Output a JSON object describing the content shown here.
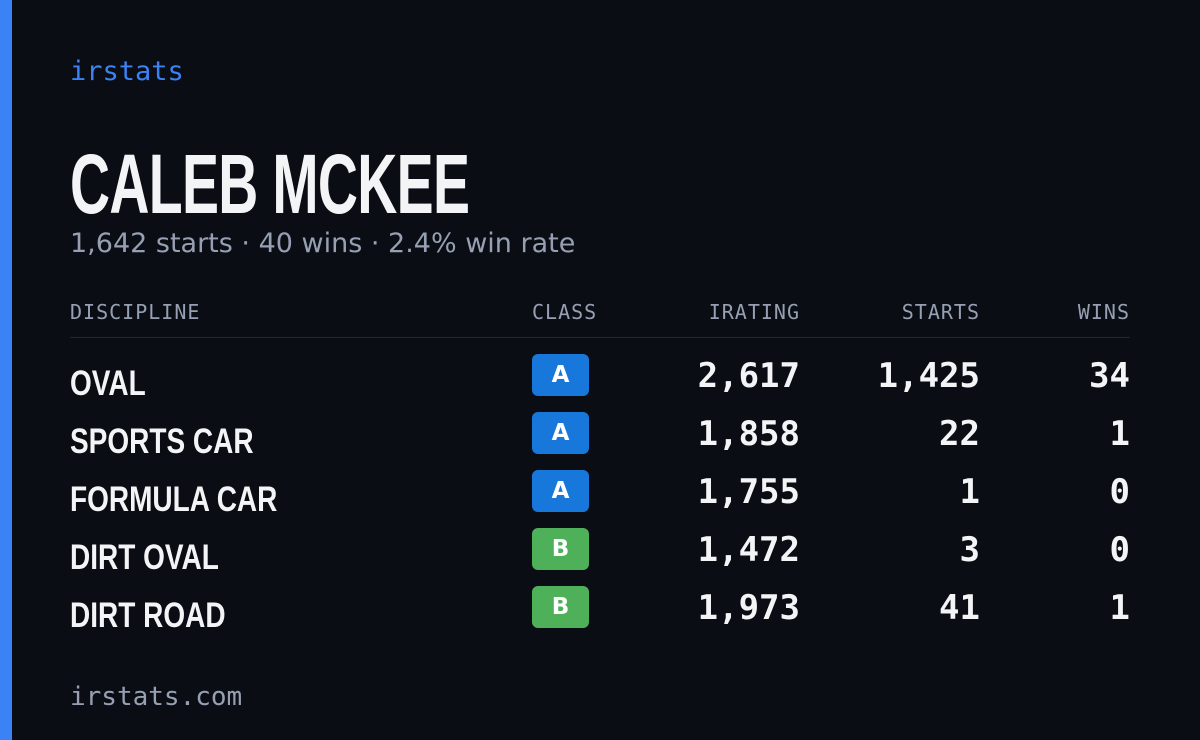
{
  "header": {
    "brand": "irstats",
    "name": "CALEB MCKEE",
    "summary": "1,642 starts · 40 wins · 2.4% win rate"
  },
  "table": {
    "columns": [
      "DISCIPLINE",
      "CLASS",
      "IRATING",
      "STARTS",
      "WINS"
    ],
    "rows": [
      [
        "OVAL",
        "A",
        "2,617",
        "1,425",
        "34"
      ],
      [
        "SPORTS CAR",
        "A",
        "1,858",
        "22",
        "1"
      ],
      [
        "FORMULA CAR",
        "A",
        "1,755",
        "1",
        "0"
      ],
      [
        "DIRT OVAL",
        "B",
        "1,472",
        "3",
        "0"
      ],
      [
        "DIRT ROAD",
        "B",
        "1,973",
        "41",
        "1"
      ]
    ],
    "class_colors": [
      "#1877db",
      "#1877db",
      "#1877db",
      "#4fb05a",
      "#4fb05a"
    ]
  },
  "footer": {
    "url": "irstats.com"
  }
}
